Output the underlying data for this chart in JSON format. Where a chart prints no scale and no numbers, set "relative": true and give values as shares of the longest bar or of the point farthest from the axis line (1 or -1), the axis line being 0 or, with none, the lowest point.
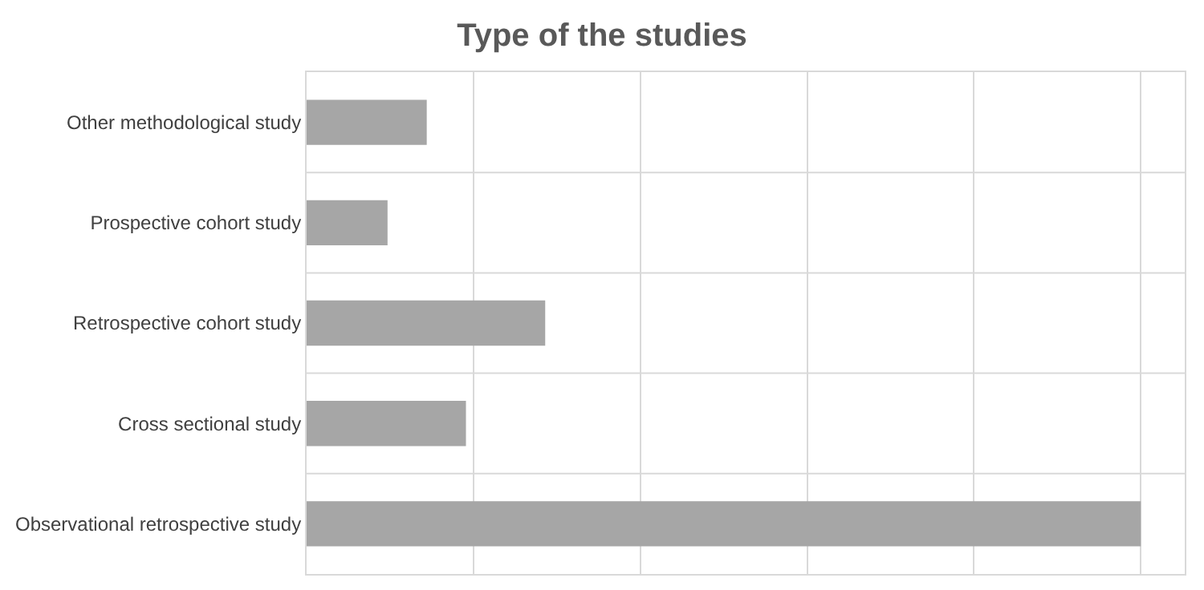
{
  "chart_data": {
    "type": "bar",
    "orientation": "horizontal",
    "relative": true,
    "title": "Type of the studies",
    "categories": [
      "Other methodological study",
      "Prospective cohort study",
      "Retrospective cohort study",
      "Cross sectional study",
      "Observational retrospective study"
    ],
    "values": [
      0.144,
      0.097,
      0.286,
      0.191,
      1
    ],
    "color": "#a6a6a6",
    "grid": true,
    "legend": false
  }
}
